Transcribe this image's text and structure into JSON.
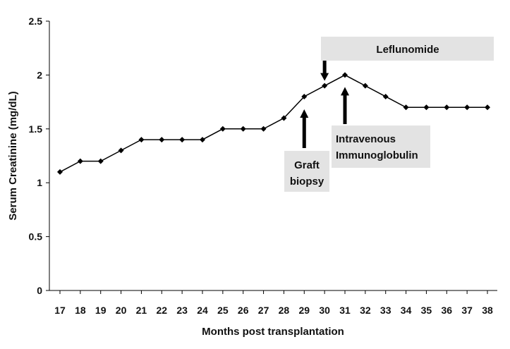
{
  "chart_data": {
    "type": "line",
    "title": "",
    "xlabel": "Months post transplantation",
    "ylabel": "Serum Creatinine  (mg/dL)",
    "x": [
      17,
      18,
      19,
      20,
      21,
      22,
      23,
      24,
      25,
      26,
      27,
      28,
      29,
      30,
      31,
      32,
      33,
      34,
      35,
      36,
      37,
      38
    ],
    "y": [
      1.1,
      1.2,
      1.2,
      1.3,
      1.4,
      1.4,
      1.4,
      1.4,
      1.5,
      1.5,
      1.5,
      1.6,
      1.8,
      1.9,
      2.0,
      1.9,
      1.8,
      1.7,
      1.7,
      1.7,
      1.7,
      1.7
    ],
    "ylim": [
      0,
      2.5
    ],
    "yticks": [
      "0",
      "0.5",
      "1",
      "1.5",
      "2",
      "2.5"
    ],
    "xticks": [
      "17",
      "18",
      "19",
      "20",
      "21",
      "22",
      "23",
      "24",
      "25",
      "26",
      "27",
      "28",
      "29",
      "30",
      "31",
      "32",
      "33",
      "34",
      "35",
      "36",
      "37",
      "38"
    ],
    "grid": false,
    "marker": "diamond",
    "line_color": "#000000",
    "annotations": {
      "leflunomide": {
        "text": "Leflunomide",
        "start_x": 30
      },
      "biopsy": {
        "lines": [
          "Graft",
          "biopsy"
        ],
        "x": 29
      },
      "ivig": {
        "lines": [
          "Intravenous",
          "Immunoglobulin"
        ],
        "x": 31
      }
    }
  }
}
